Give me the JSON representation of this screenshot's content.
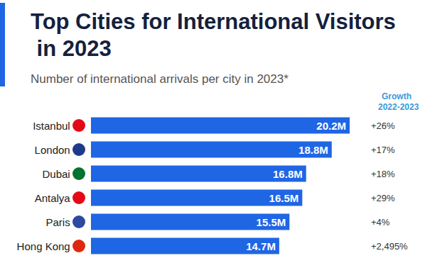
{
  "chart_data": {
    "type": "bar",
    "title": "Top Cities for International Visitors in 2023",
    "subtitle": "Number of international arrivals per city in 2023*",
    "orientation": "horizontal",
    "categories": [
      "Istanbul",
      "London",
      "Dubai",
      "Antalya",
      "Paris",
      "Hong Kong"
    ],
    "values": [
      20.2,
      18.8,
      16.8,
      16.5,
      15.5,
      14.7
    ],
    "value_labels": [
      "20.2M",
      "18.8M",
      "16.8M",
      "16.5M",
      "15.5M",
      "14.7M"
    ],
    "color": "#1f66e5",
    "data_labels": true,
    "xlim": [
      0,
      20.2
    ],
    "grid": false,
    "tick_labels": "y",
    "growth_title": [
      "Growth",
      "2022-2023"
    ],
    "growth": [
      "+26%",
      "+17%",
      "+18%",
      "+29%",
      "+4%",
      "+2,495%"
    ]
  }
}
